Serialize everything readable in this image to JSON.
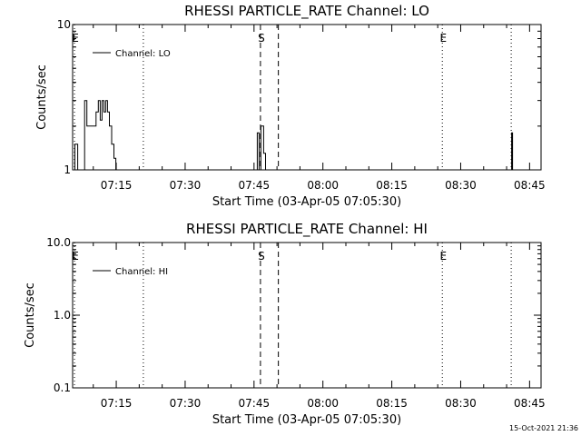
{
  "chart_data": [
    {
      "type": "line",
      "title": "RHESSI PARTICLE_RATE Channel: LO",
      "xlabel": "Start Time (03-Apr-05 07:05:30)",
      "ylabel": "Counts/sec",
      "yscale": "log",
      "ylim": [
        1,
        10
      ],
      "yticks": [
        1,
        10
      ],
      "ytick_labels": [
        "1",
        "10"
      ],
      "xlim_minutes": [
        0,
        102
      ],
      "xticks_minutes": [
        9.5,
        24.5,
        39.5,
        54.5,
        69.5,
        84.5,
        99.5
      ],
      "xtick_labels": [
        "07:15",
        "07:30",
        "07:45",
        "08:00",
        "08:15",
        "08:30",
        "08:45"
      ],
      "legend": {
        "label": "Channel: LO",
        "position": "top-left"
      },
      "markers": [
        {
          "label": "E",
          "x": 0.4,
          "style": "dotted"
        },
        {
          "label": "",
          "x": 15.4,
          "style": "dotted"
        },
        {
          "label": "S",
          "x": 40.9,
          "style": "dashed"
        },
        {
          "label": "",
          "x": 44.8,
          "style": "dashed"
        },
        {
          "label": "E",
          "x": 80.5,
          "style": "dotted"
        },
        {
          "label": "",
          "x": 95.5,
          "style": "dotted"
        }
      ],
      "series": [
        {
          "name": "Channel: LO",
          "x": [
            0,
            0.5,
            0.5,
            1.1,
            1.1,
            2.6,
            2.6,
            3.1,
            3.1,
            3.6,
            3.6,
            5.1,
            5.1,
            5.6,
            5.6,
            6.0,
            6.0,
            6.4,
            6.4,
            6.8,
            6.8,
            7.2,
            7.2,
            7.6,
            7.6,
            8.0,
            8.0,
            8.5,
            8.5,
            9.0,
            9.0,
            9.4,
            9.4,
            40.2,
            40.2,
            40.6,
            40.6,
            41.0,
            41.0,
            41.6,
            41.6,
            42.0,
            42.0,
            95.6,
            95.6,
            95.8,
            95.8,
            96.0
          ],
          "y": [
            1,
            1,
            1.5,
            1.5,
            1,
            1,
            3,
            3,
            2,
            2,
            2,
            2,
            2.5,
            2.5,
            3,
            3,
            2.2,
            2.2,
            3,
            3,
            2.5,
            2.5,
            3,
            3,
            2.5,
            2.5,
            2,
            2,
            1.5,
            1.5,
            1.2,
            1.2,
            1,
            1,
            1.8,
            1.8,
            1,
            1,
            2,
            2,
            1.3,
            1.3,
            1,
            1,
            1.8,
            1.8,
            1,
            1
          ]
        }
      ]
    },
    {
      "type": "line",
      "title": "RHESSI PARTICLE_RATE Channel: HI",
      "xlabel": "Start Time (03-Apr-05 07:05:30)",
      "ylabel": "Counts/sec",
      "yscale": "log",
      "ylim": [
        0.1,
        10
      ],
      "yticks": [
        0.1,
        1,
        10
      ],
      "ytick_labels": [
        "0.1",
        "1.0",
        "10.0"
      ],
      "xlim_minutes": [
        0,
        102
      ],
      "xticks_minutes": [
        9.5,
        24.5,
        39.5,
        54.5,
        69.5,
        84.5,
        99.5
      ],
      "xtick_labels": [
        "07:15",
        "07:30",
        "07:45",
        "08:00",
        "08:15",
        "08:30",
        "08:45"
      ],
      "legend": {
        "label": "Channel: HI",
        "position": "top-left"
      },
      "markers": [
        {
          "label": "E",
          "x": 0.4,
          "style": "dotted"
        },
        {
          "label": "",
          "x": 15.4,
          "style": "dotted"
        },
        {
          "label": "S",
          "x": 40.9,
          "style": "dashed"
        },
        {
          "label": "",
          "x": 44.8,
          "style": "dashed"
        },
        {
          "label": "E",
          "x": 80.5,
          "style": "dotted"
        },
        {
          "label": "",
          "x": 95.5,
          "style": "dotted"
        }
      ],
      "series": [
        {
          "name": "Channel: HI",
          "x": [],
          "y": []
        }
      ]
    }
  ],
  "timestamp": "15-Oct-2021 21:36"
}
